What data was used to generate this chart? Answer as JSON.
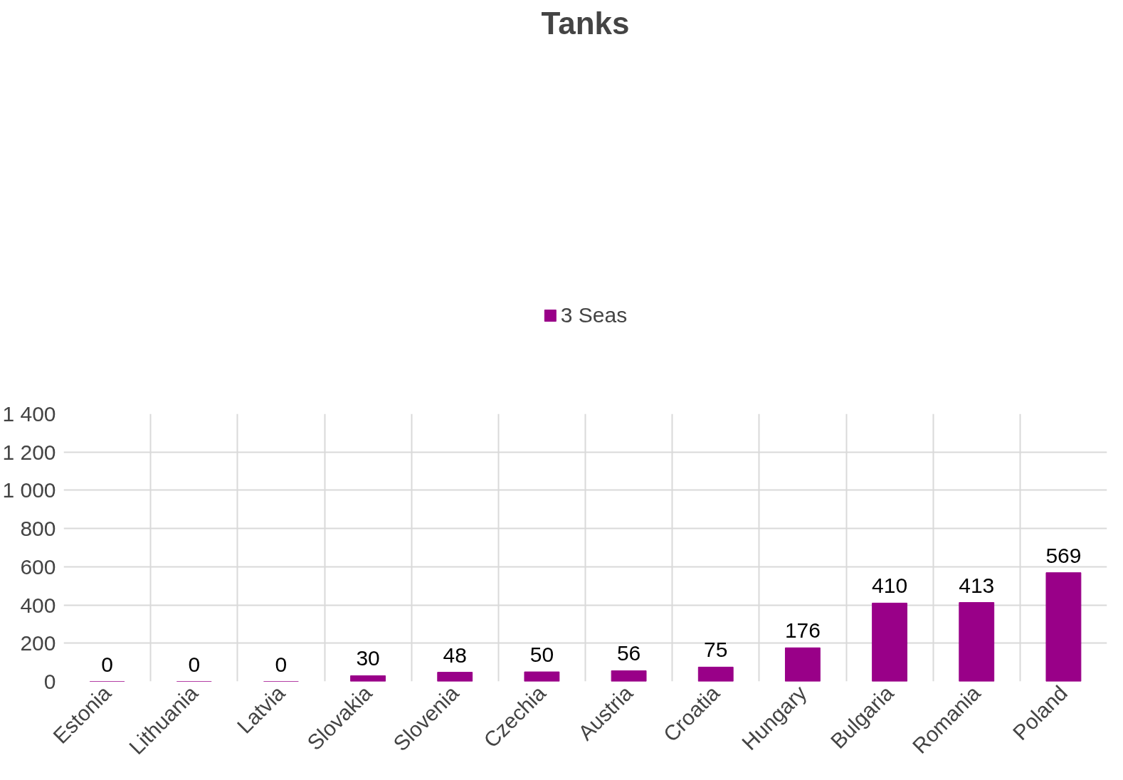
{
  "chart_data": {
    "type": "bar",
    "title": "Tanks",
    "categories": [
      "Estonia",
      "Lithuania",
      "Latvia",
      "Slovakia",
      "Slovenia",
      "Czechia",
      "Austria",
      "Croatia",
      "Hungary",
      "Bulgaria",
      "Romania",
      "Poland"
    ],
    "series": [
      {
        "name": "3 Seas",
        "color": "#990088",
        "values": [
          0,
          0,
          0,
          30,
          48,
          50,
          56,
          75,
          176,
          410,
          413,
          569
        ]
      }
    ],
    "ylim": [
      0,
      1400
    ],
    "yticks": [
      0,
      200,
      400,
      600,
      800,
      {
        "value": 1000,
        "label": "1 000"
      },
      {
        "value": 1200,
        "label": "1 200"
      },
      {
        "value": 1400,
        "label": "1 400"
      }
    ],
    "grid": true,
    "legend": "top",
    "data_labels": true
  }
}
